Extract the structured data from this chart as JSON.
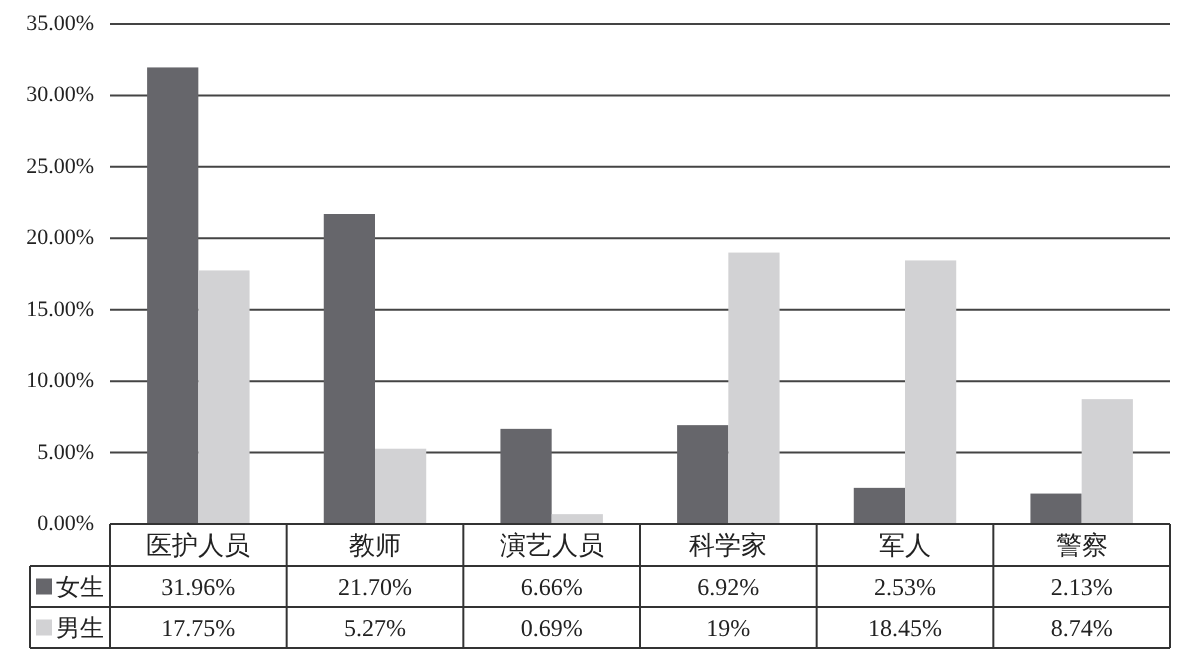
{
  "chart_data": {
    "type": "bar",
    "categories": [
      "医护人员",
      "教师",
      "演艺人员",
      "科学家",
      "军人",
      "警察"
    ],
    "series": [
      {
        "name": "女生",
        "color": "#66666b",
        "values": [
          31.96,
          21.7,
          6.66,
          6.92,
          2.53,
          2.13
        ],
        "value_labels": [
          "31.96%",
          "21.70%",
          "6.66%",
          "6.92%",
          "2.53%",
          "2.13%"
        ]
      },
      {
        "name": "男生",
        "color": "#d2d2d4",
        "values": [
          17.75,
          5.27,
          0.69,
          19,
          18.45,
          8.74
        ],
        "value_labels": [
          "17.75%",
          "5.27%",
          "0.69%",
          "19%",
          "18.45%",
          "8.74%"
        ]
      }
    ],
    "ylim": [
      0,
      35
    ],
    "yticks": [
      {
        "value": 0,
        "label": "0.00%"
      },
      {
        "value": 5,
        "label": "5.00%"
      },
      {
        "value": 10,
        "label": "10.00%"
      },
      {
        "value": 15,
        "label": "15.00%"
      },
      {
        "value": 20,
        "label": "20.00%"
      },
      {
        "value": 25,
        "label": "25.00%"
      },
      {
        "value": 30,
        "label": "30.00%"
      },
      {
        "value": 35,
        "label": "35.00%"
      }
    ],
    "grid": "y",
    "legend": "bottom"
  }
}
